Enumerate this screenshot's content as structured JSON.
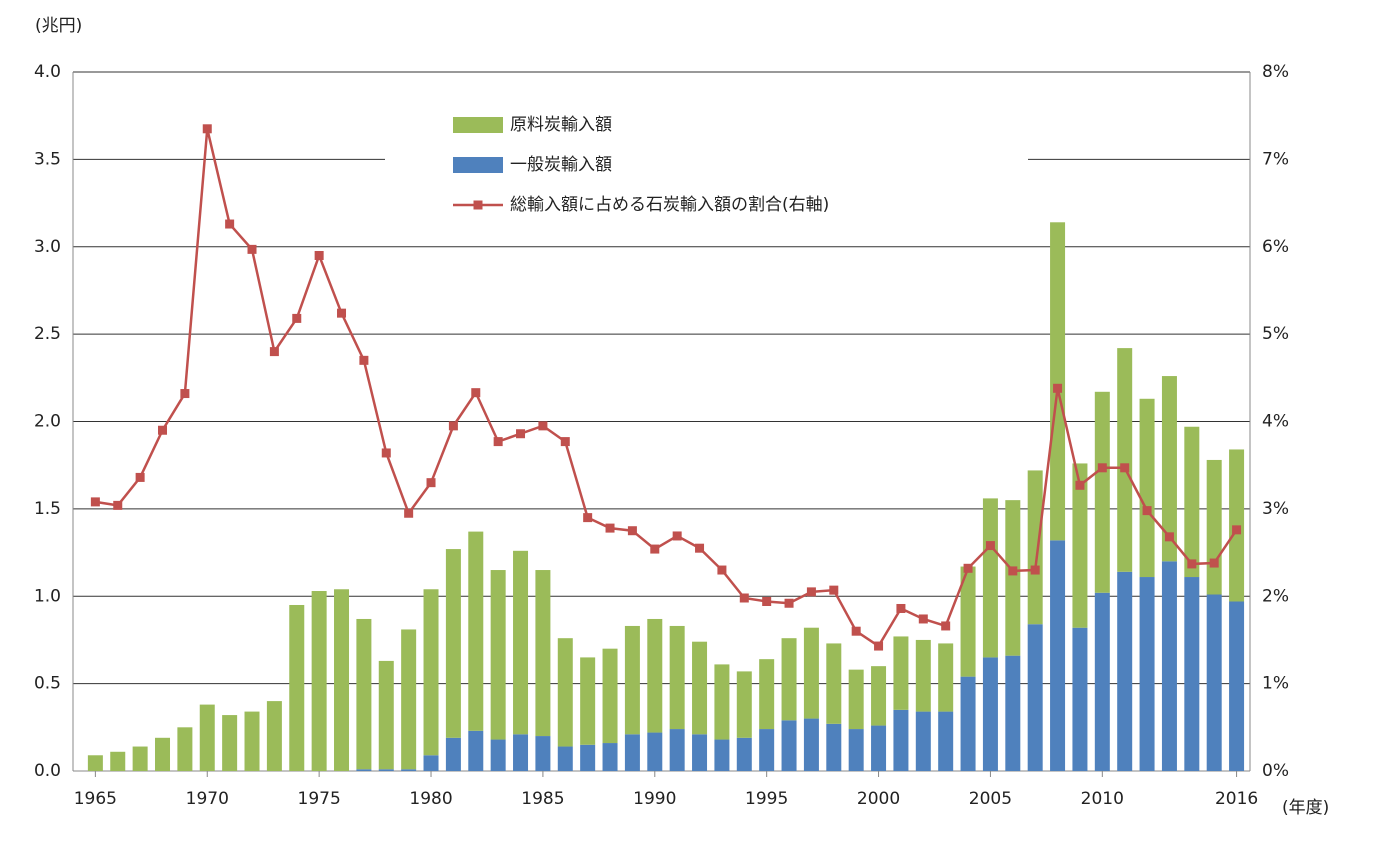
{
  "chart_data": {
    "type": "bar-line",
    "y_label": "(兆円)",
    "x_label": "(年度)",
    "x": [
      1965,
      1966,
      1967,
      1968,
      1969,
      1970,
      1971,
      1972,
      1973,
      1974,
      1975,
      1976,
      1977,
      1978,
      1979,
      1980,
      1981,
      1982,
      1983,
      1984,
      1985,
      1986,
      1987,
      1988,
      1989,
      1990,
      1991,
      1992,
      1993,
      1994,
      1995,
      1996,
      1997,
      1998,
      1999,
      2000,
      2001,
      2002,
      2003,
      2004,
      2005,
      2006,
      2007,
      2008,
      2009,
      2010,
      2011,
      2012,
      2013,
      2014,
      2015,
      2016
    ],
    "xlim": [
      1964,
      2016.6
    ],
    "xticks": [
      1965,
      1970,
      1975,
      1980,
      1985,
      1990,
      1995,
      2000,
      2005,
      2010,
      2016
    ],
    "ylim": [
      0,
      4
    ],
    "yticks": [
      {
        "value": 0,
        "label": "0.0"
      },
      0.5,
      {
        "value": 1,
        "label": "1.0"
      },
      1.5,
      {
        "value": 2,
        "label": "2.0"
      },
      2.5,
      {
        "value": 3,
        "label": "3.0"
      },
      3.5,
      {
        "value": 4,
        "label": "4.0"
      }
    ],
    "y2lim": [
      0,
      8
    ],
    "y2ticks": [
      {
        "value": 0,
        "label": "0%"
      },
      {
        "value": 1,
        "label": "1%"
      },
      {
        "value": 2,
        "label": "2%"
      },
      {
        "value": 3,
        "label": "3%"
      },
      {
        "value": 4,
        "label": "4%"
      },
      {
        "value": 5,
        "label": "5%"
      },
      {
        "value": 6,
        "label": "6%"
      },
      {
        "value": 7,
        "label": "7%"
      },
      {
        "value": 8,
        "label": "8%"
      }
    ],
    "grid": true,
    "stacked": true,
    "legend": "upper center",
    "series": [
      {
        "name": "原料炭輸入額",
        "type": "bar",
        "color": "#9bbb59",
        "values": [
          0.09,
          0.11,
          0.14,
          0.19,
          0.25,
          0.38,
          0.32,
          0.34,
          0.4,
          0.95,
          1.03,
          1.04,
          0.86,
          0.62,
          0.8,
          0.95,
          1.08,
          1.14,
          0.97,
          1.05,
          0.95,
          0.62,
          0.5,
          0.54,
          0.62,
          0.65,
          0.59,
          0.53,
          0.43,
          0.38,
          0.4,
          0.47,
          0.52,
          0.46,
          0.34,
          0.34,
          0.42,
          0.41,
          0.39,
          0.63,
          0.91,
          0.89,
          0.88,
          1.82,
          0.94,
          1.15,
          1.28,
          1.02,
          1.06,
          0.86,
          0.77,
          0.87
        ]
      },
      {
        "name": "一般炭輸入額",
        "type": "bar",
        "color": "#4f81bd",
        "values": [
          0,
          0,
          0,
          0,
          0,
          0,
          0,
          0,
          0,
          0,
          0,
          0,
          0.01,
          0.01,
          0.01,
          0.09,
          0.19,
          0.23,
          0.18,
          0.21,
          0.2,
          0.14,
          0.15,
          0.16,
          0.21,
          0.22,
          0.24,
          0.21,
          0.18,
          0.19,
          0.24,
          0.29,
          0.3,
          0.27,
          0.24,
          0.26,
          0.35,
          0.34,
          0.34,
          0.54,
          0.65,
          0.66,
          0.84,
          1.32,
          0.82,
          1.02,
          1.14,
          1.11,
          1.2,
          1.11,
          1.01,
          0.97
        ]
      },
      {
        "name": "総輸入額に占める石炭輸入額の割合(右軸)",
        "type": "line",
        "axis": "y2",
        "color": "#c0504d",
        "values": [
          3.08,
          3.04,
          3.36,
          3.9,
          4.32,
          7.35,
          6.26,
          5.97,
          4.8,
          5.18,
          5.9,
          5.24,
          4.7,
          3.64,
          2.95,
          3.3,
          3.95,
          4.33,
          3.77,
          3.86,
          3.95,
          3.77,
          2.9,
          2.78,
          2.75,
          2.54,
          2.69,
          2.55,
          2.3,
          1.98,
          1.94,
          1.92,
          2.05,
          2.07,
          1.6,
          1.43,
          1.86,
          1.74,
          1.66,
          2.32,
          2.58,
          2.29,
          2.3,
          4.38,
          3.27,
          3.47,
          3.47,
          2.98,
          2.68,
          2.37,
          2.38,
          2.76
        ]
      }
    ]
  }
}
